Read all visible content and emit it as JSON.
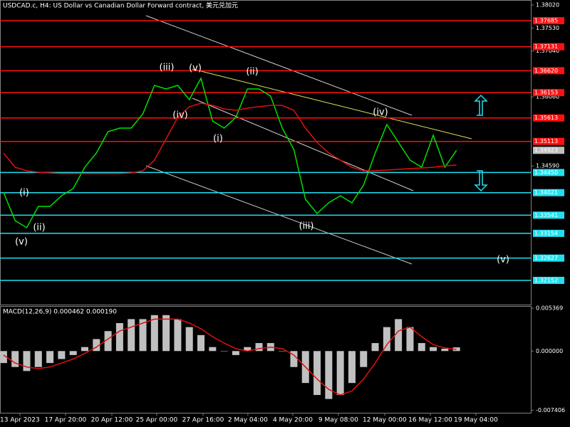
{
  "chart_data": [
    {
      "type": "line",
      "title": "USDCAD.c, H4:  US Dollar vs Canadian Dollar Forward contract, 美元兑加元",
      "xlim": [
        -0.3,
        45.4
      ],
      "ylim": [
        1.31636,
        1.38126
      ],
      "yticks": [
        {
          "value": 1.3802,
          "label": "1.38020"
        },
        {
          "value": 1.3753,
          "label": "1.37530"
        },
        {
          "value": 1.3704,
          "label": "1.37040"
        },
        {
          "value": 1.3606,
          "label": "1.36060"
        },
        {
          "value": 1.3459,
          "label": "1.34590"
        }
      ],
      "last_price": {
        "value": 1.34923,
        "label": "1.34923"
      },
      "series": [
        {
          "name": "Close",
          "color": "#00e000",
          "values": [
            1.34032,
            1.33426,
            1.33274,
            1.33729,
            1.33729,
            1.33956,
            1.34108,
            1.34563,
            1.34866,
            1.35321,
            1.35397,
            1.35397,
            1.357,
            1.36307,
            1.36231,
            1.36307,
            1.36003,
            1.36458,
            1.35548,
            1.35397,
            1.35624,
            1.36231,
            1.36231,
            1.36079,
            1.35397,
            1.34942,
            1.3388,
            1.33577,
            1.33805,
            1.33956,
            1.33805,
            1.34184,
            1.34866,
            1.35473,
            1.35094,
            1.34714,
            1.34563,
            1.35245,
            1.34563,
            1.34923
          ]
        },
        {
          "name": "MA",
          "color": "#e01010",
          "values": [
            1.34866,
            1.34563,
            1.34487,
            1.34457,
            1.34442,
            1.34426,
            1.34426,
            1.34426,
            1.34426,
            1.34426,
            1.34426,
            1.34442,
            1.34487,
            1.34714,
            1.35169,
            1.35624,
            1.35852,
            1.35928,
            1.35882,
            1.35806,
            1.35776,
            1.35821,
            1.35852,
            1.35882,
            1.35882,
            1.35776,
            1.35397,
            1.35094,
            1.34866,
            1.34714,
            1.34563,
            1.34487,
            1.34487,
            1.34502,
            1.34517,
            1.34533,
            1.34548,
            1.34563,
            1.34593,
            1.34609
          ]
        }
      ],
      "levels": [
        {
          "value": 1.37685,
          "label": "1.37685",
          "color": "#ff1010"
        },
        {
          "value": 1.37131,
          "label": "1.37131",
          "color": "#ff1010"
        },
        {
          "value": 1.3662,
          "label": "1.36620",
          "color": "#ff1010"
        },
        {
          "value": 1.36153,
          "label": "1.36153",
          "color": "#ff1010"
        },
        {
          "value": 1.35613,
          "label": "1.35613",
          "color": "#ff1010"
        },
        {
          "value": 1.35113,
          "label": "1.35113",
          "color": "#ff1010"
        },
        {
          "value": 1.3445,
          "label": "1.34450",
          "color": "#20e0f0"
        },
        {
          "value": 1.34021,
          "label": "1.34021",
          "color": "#20e0f0"
        },
        {
          "value": 1.33541,
          "label": "1.33541",
          "color": "#20e0f0"
        },
        {
          "value": 1.33154,
          "label": "1.33154",
          "color": "#20e0f0"
        },
        {
          "value": 1.32627,
          "label": "1.32627",
          "color": "#20e0f0"
        },
        {
          "value": 1.32152,
          "label": "1.32152",
          "color": "#20e0f0"
        }
      ],
      "annotations": [
        "(iii)",
        "(v)",
        "(ii)",
        "(iv)",
        "(i)",
        "(iv)",
        "(iii)",
        "(v)",
        "(i)",
        "(ii)",
        "(v)"
      ]
    },
    {
      "type": "bar",
      "title": "MACD(12,26,9) 0.000462 0.000190",
      "xlim": [
        -0.3,
        45.4
      ],
      "ylim": [
        -0.00755,
        0.00555
      ],
      "yticks": [
        {
          "value": 0.005369,
          "label": "0.005369"
        },
        {
          "value": 0,
          "label": "0.000000"
        },
        {
          "value": -0.007406,
          "label": "-0.007406"
        }
      ],
      "xticks": [
        {
          "value": 1.41,
          "label": "13 Apr 2023"
        },
        {
          "value": 5.34,
          "label": "17 Apr 20:00"
        },
        {
          "value": 9.33,
          "label": "20 Apr 12:00"
        },
        {
          "value": 13.19,
          "label": "25 Apr 00:00"
        },
        {
          "value": 17.18,
          "label": "27 Apr 16:00"
        },
        {
          "value": 21.04,
          "label": "2 May 04:00"
        },
        {
          "value": 24.91,
          "label": "4 May 20:00"
        },
        {
          "value": 28.83,
          "label": "9 May 08:00"
        },
        {
          "value": 32.82,
          "label": "12 May 00:00"
        },
        {
          "value": 36.75,
          "label": "16 May 12:00"
        },
        {
          "value": 40.67,
          "label": "19 May 04:00"
        }
      ],
      "series": [
        {
          "name": "MACD",
          "color": "#c0c0c0",
          "values": [
            -0.0015,
            -0.002,
            -0.0025,
            -0.002,
            -0.0015,
            -0.001,
            -0.0005,
            0.0005,
            0.0015,
            0.0025,
            0.0035,
            0.004,
            0.004,
            0.0045,
            0.0045,
            0.004,
            0.003,
            0.002,
            0.0005,
            0,
            -0.0005,
            0.0005,
            0.001,
            0.001,
            0,
            -0.002,
            -0.004,
            -0.0055,
            -0.006,
            -0.0055,
            -0.004,
            -0.002,
            0.001,
            0.003,
            0.004,
            0.003,
            0.001,
            0.0005,
            0.0003,
            0.000462
          ]
        },
        {
          "name": "Signal",
          "color": "#e01010",
          "values": [
            -0.0005,
            -0.0015,
            -0.002,
            -0.0022,
            -0.002,
            -0.0015,
            -0.001,
            -0.0003,
            0.0005,
            0.0015,
            0.0025,
            0.003,
            0.0035,
            0.004,
            0.004,
            0.004,
            0.0035,
            0.0028,
            0.0018,
            0.001,
            0.0003,
            0,
            0.0003,
            0.0005,
            0.0003,
            -0.0005,
            -0.002,
            -0.0035,
            -0.0048,
            -0.0055,
            -0.005,
            -0.0035,
            -0.0015,
            0.0008,
            0.0025,
            0.003,
            0.0018,
            0.0008,
            0.0004,
            0.00019
          ]
        }
      ]
    }
  ]
}
